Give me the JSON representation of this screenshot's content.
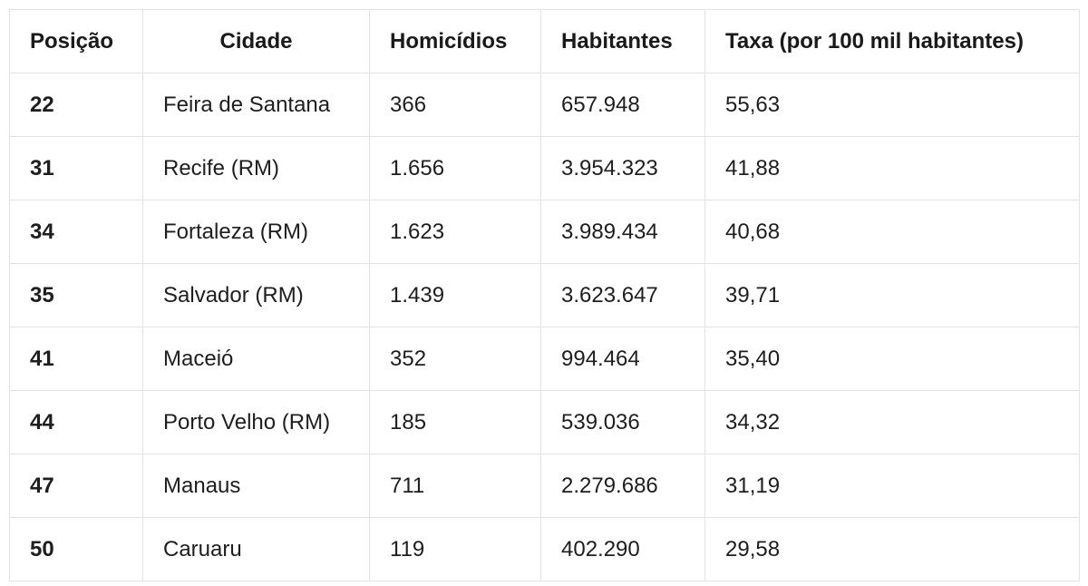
{
  "table": {
    "headers": [
      "Posição",
      "Cidade",
      "Homicídios",
      "Habitantes",
      "Taxa (por 100 mil habitantes)"
    ],
    "rows": [
      [
        "22",
        "Feira de Santana",
        "366",
        "657.948",
        "55,63"
      ],
      [
        "31",
        "Recife (RM)",
        "1.656",
        "3.954.323",
        "41,88"
      ],
      [
        "34",
        "Fortaleza (RM)",
        "1.623",
        "3.989.434",
        "40,68"
      ],
      [
        "35",
        "Salvador (RM)",
        "1.439",
        "3.623.647",
        "39,71"
      ],
      [
        "41",
        "Maceió",
        "352",
        "994.464",
        "35,40"
      ],
      [
        "44",
        "Porto Velho (RM)",
        "185",
        "539.036",
        "34,32"
      ],
      [
        "47",
        "Manaus",
        "711",
        "2.279.686",
        "31,19"
      ],
      [
        "50",
        "Caruaru",
        "119",
        "402.290",
        "29,58"
      ]
    ]
  }
}
